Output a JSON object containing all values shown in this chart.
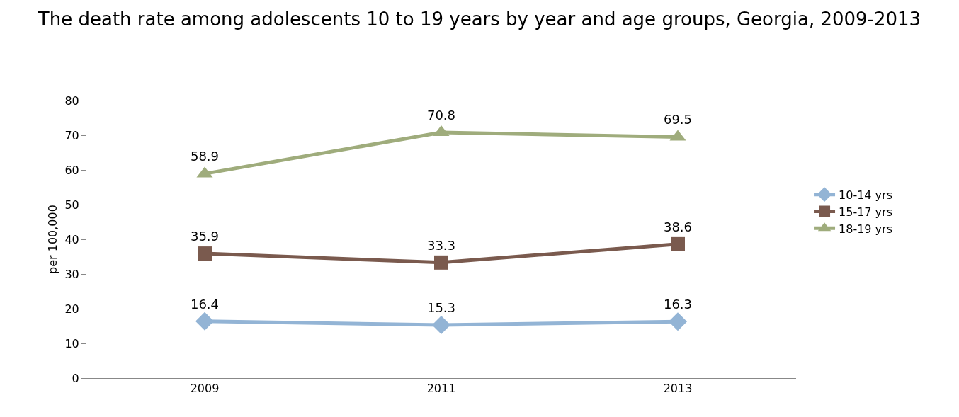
{
  "chart_data": {
    "type": "line",
    "title": "The death rate among adolescents 10 to 19 years by year and age groups, Georgia, 2009-2013",
    "ylabel": "per 100,000",
    "categories": [
      "2009",
      "2011",
      "2013"
    ],
    "series": [
      {
        "name": "10-14 yrs",
        "color": "#93b4d5",
        "values": [
          16.4,
          15.3,
          16.3
        ],
        "marker": "diamond"
      },
      {
        "name": "15-17 yrs",
        "color": "#7a5a4e",
        "values": [
          35.9,
          33.3,
          38.6
        ],
        "marker": "square"
      },
      {
        "name": "18-19 yrs",
        "color": "#9fac7c",
        "values": [
          58.9,
          70.8,
          69.5
        ],
        "marker": "triangle"
      }
    ],
    "ylim": [
      0,
      80
    ],
    "yticks": [
      0,
      10,
      20,
      30,
      40,
      50,
      60,
      70,
      80
    ],
    "grid": false,
    "legend": "right",
    "data_labels": true,
    "line_style": "solid"
  }
}
